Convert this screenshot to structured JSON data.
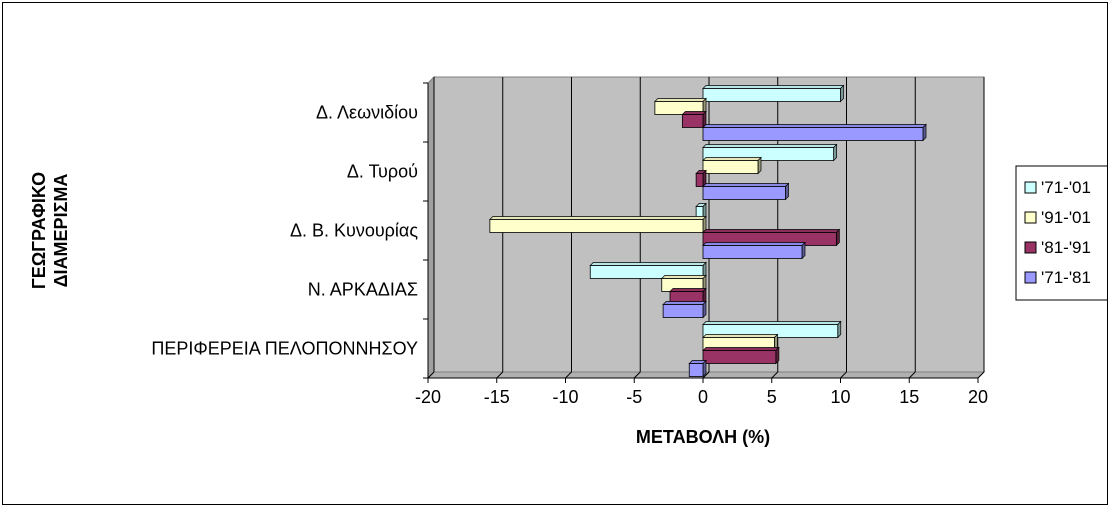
{
  "chart_data": {
    "type": "bar",
    "orientation": "horizontal",
    "categories": [
      "Δ. Λεωνιδίου",
      "Δ. Τυρού",
      "Δ. Β. Κυνουρίας",
      "Ν. ΑΡΚΑΔΙΑΣ",
      "ΠΕΡΙΦΕΡΕΙΑ ΠΕΛΟΠΟΝΝΗΣΟΥ"
    ],
    "series": [
      {
        "name": "'71-'01",
        "color": "#ccffff",
        "values": [
          10,
          9.5,
          -0.5,
          -8.2,
          9.8
        ]
      },
      {
        "name": "'91-'01",
        "color": "#ffffcc",
        "values": [
          -3.5,
          4,
          -15.5,
          -3,
          5.2
        ]
      },
      {
        "name": "'81-'91",
        "color": "#993366",
        "values": [
          -1.5,
          -0.5,
          9.7,
          -2.4,
          5.3
        ]
      },
      {
        "name": "'71-'81",
        "color": "#9999ff",
        "values": [
          16,
          6,
          7.2,
          -2.9,
          -1
        ]
      }
    ],
    "xlabel": "ΜΕΤΑΒΟΛΗ (%)",
    "ylabel_lines": [
      "ΓΕΩΓΡΑΦΙΚΟ",
      "ΔΙΑΜΕΡΙΣΜΑ"
    ],
    "xlim": [
      -20,
      20
    ],
    "xticks": [
      "-20",
      "-15",
      "-10",
      "-5",
      "0",
      "5",
      "10",
      "15",
      "20"
    ],
    "grid": true,
    "legend": "right"
  }
}
